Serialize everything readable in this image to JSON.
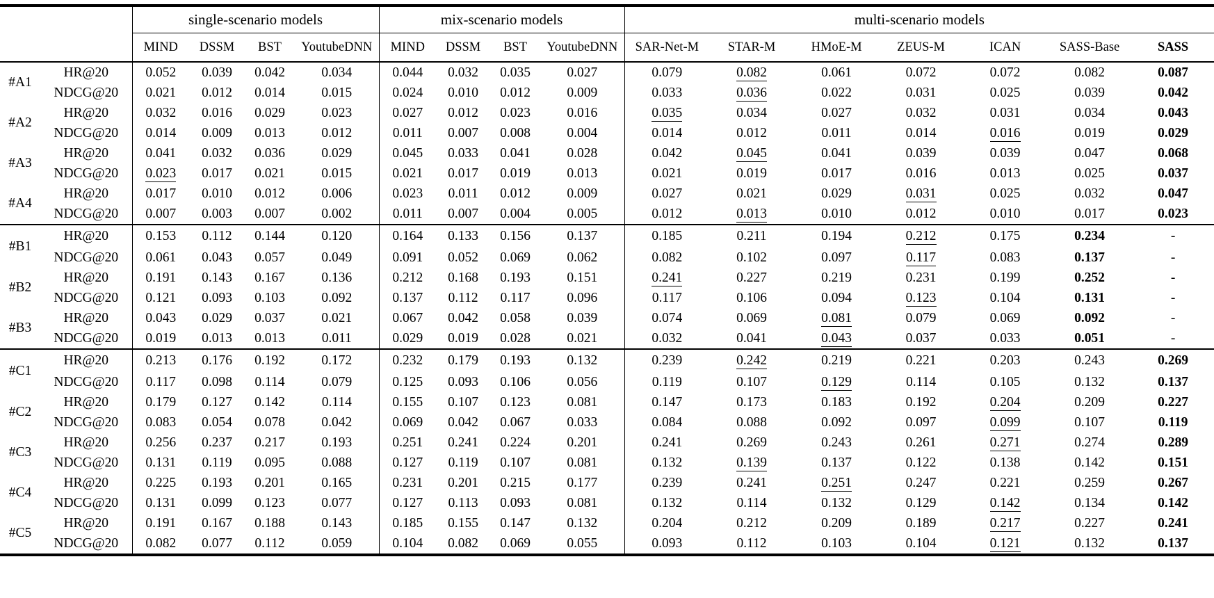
{
  "table": {
    "corner_label": "",
    "metric_column_labels": [
      "HR@20",
      "NDCG@20"
    ],
    "column_groups": [
      {
        "label": "single-scenario models",
        "columns": [
          "MIND",
          "DSSM",
          "BST",
          "YoutubeDNN"
        ]
      },
      {
        "label": "mix-scenario models",
        "columns": [
          "MIND",
          "DSSM",
          "BST",
          "YoutubeDNN"
        ]
      },
      {
        "label": "multi-scenario models",
        "columns": [
          "SAR-Net-M",
          "STAR-M",
          "HMoE-M",
          "ZEUS-M",
          "ICAN",
          "SASS-Base",
          "SASS"
        ],
        "bold_columns": [
          "SASS"
        ]
      }
    ],
    "sections": [
      {
        "groups": [
          {
            "label": "#A1",
            "rows": [
              {
                "metric": "HR@20",
                "values": [
                  "0.052",
                  "0.039",
                  "0.042",
                  "0.034",
                  "0.044",
                  "0.032",
                  "0.035",
                  "0.027",
                  "0.079",
                  "0.082",
                  "0.061",
                  "0.072",
                  "0.072",
                  "0.082",
                  "0.087"
                ],
                "underline": [
                  9
                ],
                "bold": [
                  14
                ]
              },
              {
                "metric": "NDCG@20",
                "values": [
                  "0.021",
                  "0.012",
                  "0.014",
                  "0.015",
                  "0.024",
                  "0.010",
                  "0.012",
                  "0.009",
                  "0.033",
                  "0.036",
                  "0.022",
                  "0.031",
                  "0.025",
                  "0.039",
                  "0.042"
                ],
                "underline": [
                  9
                ],
                "bold": [
                  14
                ]
              }
            ]
          },
          {
            "label": "#A2",
            "rows": [
              {
                "metric": "HR@20",
                "values": [
                  "0.032",
                  "0.016",
                  "0.029",
                  "0.023",
                  "0.027",
                  "0.012",
                  "0.023",
                  "0.016",
                  "0.035",
                  "0.034",
                  "0.027",
                  "0.032",
                  "0.031",
                  "0.034",
                  "0.043"
                ],
                "underline": [
                  8
                ],
                "bold": [
                  14
                ]
              },
              {
                "metric": "NDCG@20",
                "values": [
                  "0.014",
                  "0.009",
                  "0.013",
                  "0.012",
                  "0.011",
                  "0.007",
                  "0.008",
                  "0.004",
                  "0.014",
                  "0.012",
                  "0.011",
                  "0.014",
                  "0.016",
                  "0.019",
                  "0.029"
                ],
                "underline": [
                  12
                ],
                "bold": [
                  14
                ]
              }
            ]
          },
          {
            "label": "#A3",
            "rows": [
              {
                "metric": "HR@20",
                "values": [
                  "0.041",
                  "0.032",
                  "0.036",
                  "0.029",
                  "0.045",
                  "0.033",
                  "0.041",
                  "0.028",
                  "0.042",
                  "0.045",
                  "0.041",
                  "0.039",
                  "0.039",
                  "0.047",
                  "0.068"
                ],
                "underline": [
                  9
                ],
                "bold": [
                  14
                ]
              },
              {
                "metric": "NDCG@20",
                "values": [
                  "0.023",
                  "0.017",
                  "0.021",
                  "0.015",
                  "0.021",
                  "0.017",
                  "0.019",
                  "0.013",
                  "0.021",
                  "0.019",
                  "0.017",
                  "0.016",
                  "0.013",
                  "0.025",
                  "0.037"
                ],
                "underline": [
                  0
                ],
                "bold": [
                  14
                ]
              }
            ]
          },
          {
            "label": "#A4",
            "rows": [
              {
                "metric": "HR@20",
                "values": [
                  "0.017",
                  "0.010",
                  "0.012",
                  "0.006",
                  "0.023",
                  "0.011",
                  "0.012",
                  "0.009",
                  "0.027",
                  "0.021",
                  "0.029",
                  "0.031",
                  "0.025",
                  "0.032",
                  "0.047"
                ],
                "underline": [
                  11
                ],
                "bold": [
                  14
                ]
              },
              {
                "metric": "NDCG@20",
                "values": [
                  "0.007",
                  "0.003",
                  "0.007",
                  "0.002",
                  "0.011",
                  "0.007",
                  "0.004",
                  "0.005",
                  "0.012",
                  "0.013",
                  "0.010",
                  "0.012",
                  "0.010",
                  "0.017",
                  "0.023"
                ],
                "underline": [
                  9
                ],
                "bold": [
                  14
                ]
              }
            ]
          }
        ]
      },
      {
        "groups": [
          {
            "label": "#B1",
            "rows": [
              {
                "metric": "HR@20",
                "values": [
                  "0.153",
                  "0.112",
                  "0.144",
                  "0.120",
                  "0.164",
                  "0.133",
                  "0.156",
                  "0.137",
                  "0.185",
                  "0.211",
                  "0.194",
                  "0.212",
                  "0.175",
                  "0.234",
                  "-"
                ],
                "underline": [
                  11
                ],
                "bold": [
                  13
                ]
              },
              {
                "metric": "NDCG@20",
                "values": [
                  "0.061",
                  "0.043",
                  "0.057",
                  "0.049",
                  "0.091",
                  "0.052",
                  "0.069",
                  "0.062",
                  "0.082",
                  "0.102",
                  "0.097",
                  "0.117",
                  "0.083",
                  "0.137",
                  "-"
                ],
                "underline": [
                  11
                ],
                "bold": [
                  13
                ]
              }
            ]
          },
          {
            "label": "#B2",
            "rows": [
              {
                "metric": "HR@20",
                "values": [
                  "0.191",
                  "0.143",
                  "0.167",
                  "0.136",
                  "0.212",
                  "0.168",
                  "0.193",
                  "0.151",
                  "0.241",
                  "0.227",
                  "0.219",
                  "0.231",
                  "0.199",
                  "0.252",
                  "-"
                ],
                "underline": [
                  8
                ],
                "bold": [
                  13
                ]
              },
              {
                "metric": "NDCG@20",
                "values": [
                  "0.121",
                  "0.093",
                  "0.103",
                  "0.092",
                  "0.137",
                  "0.112",
                  "0.117",
                  "0.096",
                  "0.117",
                  "0.106",
                  "0.094",
                  "0.123",
                  "0.104",
                  "0.131",
                  "-"
                ],
                "underline": [
                  11
                ],
                "bold": [
                  13
                ]
              }
            ]
          },
          {
            "label": "#B3",
            "rows": [
              {
                "metric": "HR@20",
                "values": [
                  "0.043",
                  "0.029",
                  "0.037",
                  "0.021",
                  "0.067",
                  "0.042",
                  "0.058",
                  "0.039",
                  "0.074",
                  "0.069",
                  "0.081",
                  "0.079",
                  "0.069",
                  "0.092",
                  "-"
                ],
                "underline": [
                  10
                ],
                "bold": [
                  13
                ]
              },
              {
                "metric": "NDCG@20",
                "values": [
                  "0.019",
                  "0.013",
                  "0.013",
                  "0.011",
                  "0.029",
                  "0.019",
                  "0.028",
                  "0.021",
                  "0.032",
                  "0.041",
                  "0.043",
                  "0.037",
                  "0.033",
                  "0.051",
                  "-"
                ],
                "underline": [
                  10
                ],
                "bold": [
                  13
                ]
              }
            ]
          }
        ]
      },
      {
        "groups": [
          {
            "label": "#C1",
            "rows": [
              {
                "metric": "HR@20",
                "values": [
                  "0.213",
                  "0.176",
                  "0.192",
                  "0.172",
                  "0.232",
                  "0.179",
                  "0.193",
                  "0.132",
                  "0.239",
                  "0.242",
                  "0.219",
                  "0.221",
                  "0.203",
                  "0.243",
                  "0.269"
                ],
                "underline": [
                  9
                ],
                "bold": [
                  14
                ]
              },
              {
                "metric": "NDCG@20",
                "values": [
                  "0.117",
                  "0.098",
                  "0.114",
                  "0.079",
                  "0.125",
                  "0.093",
                  "0.106",
                  "0.056",
                  "0.119",
                  "0.107",
                  "0.129",
                  "0.114",
                  "0.105",
                  "0.132",
                  "0.137"
                ],
                "underline": [
                  10
                ],
                "bold": [
                  14
                ]
              }
            ]
          },
          {
            "label": "#C2",
            "rows": [
              {
                "metric": "HR@20",
                "values": [
                  "0.179",
                  "0.127",
                  "0.142",
                  "0.114",
                  "0.155",
                  "0.107",
                  "0.123",
                  "0.081",
                  "0.147",
                  "0.173",
                  "0.183",
                  "0.192",
                  "0.204",
                  "0.209",
                  "0.227"
                ],
                "underline": [
                  12
                ],
                "bold": [
                  14
                ]
              },
              {
                "metric": "NDCG@20",
                "values": [
                  "0.083",
                  "0.054",
                  "0.078",
                  "0.042",
                  "0.069",
                  "0.042",
                  "0.067",
                  "0.033",
                  "0.084",
                  "0.088",
                  "0.092",
                  "0.097",
                  "0.099",
                  "0.107",
                  "0.119"
                ],
                "underline": [
                  12
                ],
                "bold": [
                  14
                ]
              }
            ]
          },
          {
            "label": "#C3",
            "rows": [
              {
                "metric": "HR@20",
                "values": [
                  "0.256",
                  "0.237",
                  "0.217",
                  "0.193",
                  "0.251",
                  "0.241",
                  "0.224",
                  "0.201",
                  "0.241",
                  "0.269",
                  "0.243",
                  "0.261",
                  "0.271",
                  "0.274",
                  "0.289"
                ],
                "underline": [
                  12
                ],
                "bold": [
                  14
                ]
              },
              {
                "metric": "NDCG@20",
                "values": [
                  "0.131",
                  "0.119",
                  "0.095",
                  "0.088",
                  "0.127",
                  "0.119",
                  "0.107",
                  "0.081",
                  "0.132",
                  "0.139",
                  "0.137",
                  "0.122",
                  "0.138",
                  "0.142",
                  "0.151"
                ],
                "underline": [
                  9
                ],
                "bold": [
                  14
                ]
              }
            ]
          },
          {
            "label": "#C4",
            "rows": [
              {
                "metric": "HR@20",
                "values": [
                  "0.225",
                  "0.193",
                  "0.201",
                  "0.165",
                  "0.231",
                  "0.201",
                  "0.215",
                  "0.177",
                  "0.239",
                  "0.241",
                  "0.251",
                  "0.247",
                  "0.221",
                  "0.259",
                  "0.267"
                ],
                "underline": [
                  10
                ],
                "bold": [
                  14
                ]
              },
              {
                "metric": "NDCG@20",
                "values": [
                  "0.131",
                  "0.099",
                  "0.123",
                  "0.077",
                  "0.127",
                  "0.113",
                  "0.093",
                  "0.081",
                  "0.132",
                  "0.114",
                  "0.132",
                  "0.129",
                  "0.142",
                  "0.134",
                  "0.142"
                ],
                "underline": [
                  12
                ],
                "bold": [
                  14
                ]
              }
            ]
          },
          {
            "label": "#C5",
            "rows": [
              {
                "metric": "HR@20",
                "values": [
                  "0.191",
                  "0.167",
                  "0.188",
                  "0.143",
                  "0.185",
                  "0.155",
                  "0.147",
                  "0.132",
                  "0.204",
                  "0.212",
                  "0.209",
                  "0.189",
                  "0.217",
                  "0.227",
                  "0.241"
                ],
                "underline": [
                  12
                ],
                "bold": [
                  14
                ]
              },
              {
                "metric": "NDCG@20",
                "values": [
                  "0.082",
                  "0.077",
                  "0.112",
                  "0.059",
                  "0.104",
                  "0.082",
                  "0.069",
                  "0.055",
                  "0.093",
                  "0.112",
                  "0.103",
                  "0.104",
                  "0.121",
                  "0.132",
                  "0.137"
                ],
                "underline": [
                  12
                ],
                "bold": [
                  14
                ]
              }
            ]
          }
        ]
      }
    ]
  }
}
